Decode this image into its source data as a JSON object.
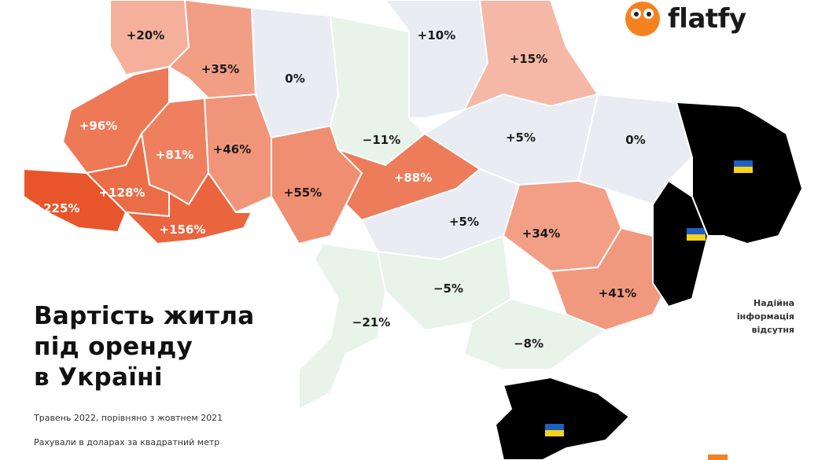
{
  "title_lines": [
    "Вартість житла",
    "під оренду",
    "в Україні"
  ],
  "subtitle": "Травень 2022, порівняно з жовтнем 2021",
  "note_units": "Рахували в доларах за квадратний метр",
  "no_data_note": [
    "Надійна",
    "інформація",
    "відсутня"
  ],
  "logo": {
    "text": "flatfy",
    "color": "#f58220"
  },
  "colors": {
    "neutral": "#e9ecf3",
    "negative": "#e8f3ea",
    "no_data": "#000000",
    "max": "#e8552a"
  },
  "regions": [
    {
      "label": "+20%",
      "value": 20
    },
    {
      "label": "+35%",
      "value": 35
    },
    {
      "label": "0%",
      "value": 0
    },
    {
      "label": "−11%",
      "value": -11
    },
    {
      "label": "+10%",
      "value": 10
    },
    {
      "label": "+15%",
      "value": 15
    },
    {
      "label": "+5%",
      "value": 5
    },
    {
      "label": "0%",
      "value": 0
    },
    {
      "label": "+96%",
      "value": 96
    },
    {
      "label": "+81%",
      "value": 81
    },
    {
      "label": "+46%",
      "value": 46
    },
    {
      "label": "+225%",
      "value": 225
    },
    {
      "label": "+128%",
      "value": 128
    },
    {
      "label": "+156%",
      "value": 156
    },
    {
      "label": "+55%",
      "value": 55
    },
    {
      "label": "+88%",
      "value": 88
    },
    {
      "label": "+5%",
      "value": 5
    },
    {
      "label": "+34%",
      "value": 34
    },
    {
      "label": "−21%",
      "value": -21
    },
    {
      "label": "−5%",
      "value": -5
    },
    {
      "label": "+41%",
      "value": 41
    },
    {
      "label": "−8%",
      "value": -8
    }
  ],
  "occupied_regions": [
    "flag-icon",
    "flag-icon",
    "flag-icon"
  ]
}
